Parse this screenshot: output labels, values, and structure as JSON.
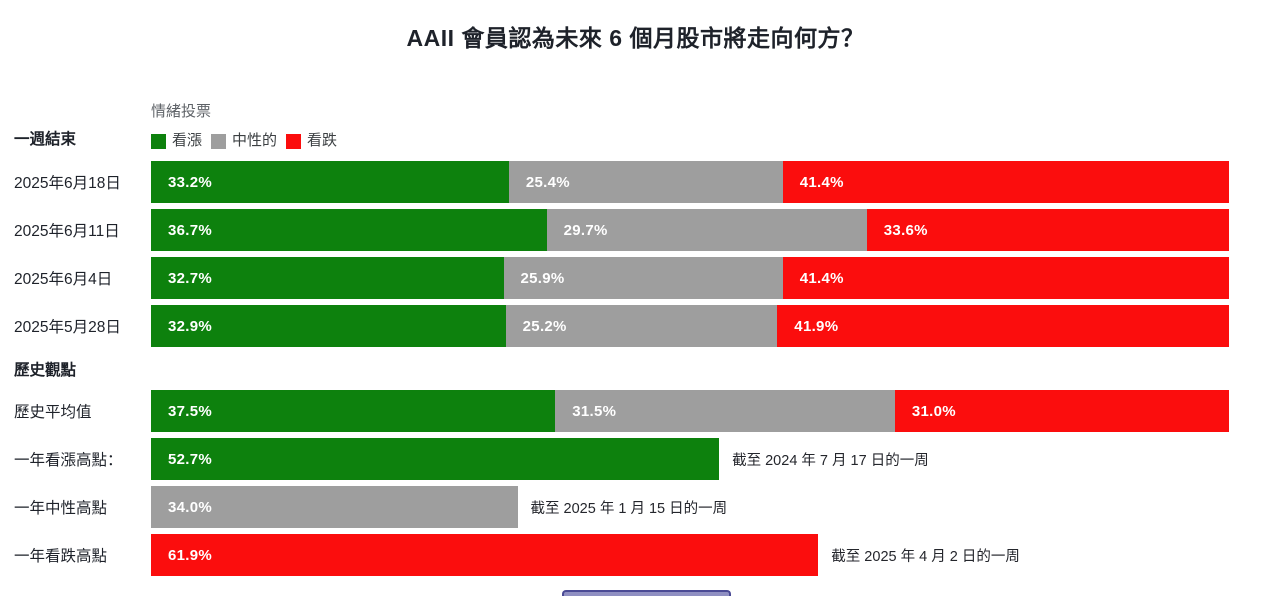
{
  "page": {
    "title": "AAII 會員認為未來 6 個月股市將走向何方？"
  },
  "colors": {
    "bullish": "#0d810d",
    "neutral": "#9e9e9e",
    "bearish": "#fb0d0d"
  },
  "legend": {
    "title": "情緒投票",
    "items": [
      {
        "label": "看漲",
        "color": "#0d810d",
        "kind": "bullish"
      },
      {
        "label": "中性的",
        "color": "#9e9e9e",
        "kind": "neutral"
      },
      {
        "label": "看跌",
        "color": "#fb0d0d",
        "kind": "bearish"
      }
    ]
  },
  "sections": [
    {
      "header": "一週結束",
      "rows": [
        {
          "label": "2025年6月18日",
          "segments": [
            {
              "kind": "bullish",
              "value": 33.2,
              "text": "33.2%"
            },
            {
              "kind": "neutral",
              "value": 25.4,
              "text": "25.4%"
            },
            {
              "kind": "bearish",
              "value": 41.4,
              "text": "41.4%"
            }
          ]
        },
        {
          "label": "2025年6月11日",
          "segments": [
            {
              "kind": "bullish",
              "value": 36.7,
              "text": "36.7%"
            },
            {
              "kind": "neutral",
              "value": 29.7,
              "text": "29.7%"
            },
            {
              "kind": "bearish",
              "value": 33.6,
              "text": "33.6%"
            }
          ]
        },
        {
          "label": "2025年6月4日",
          "segments": [
            {
              "kind": "bullish",
              "value": 32.7,
              "text": "32.7%"
            },
            {
              "kind": "neutral",
              "value": 25.9,
              "text": "25.9%"
            },
            {
              "kind": "bearish",
              "value": 41.4,
              "text": "41.4%"
            }
          ]
        },
        {
          "label": "2025年5月28日",
          "segments": [
            {
              "kind": "bullish",
              "value": 32.9,
              "text": "32.9%"
            },
            {
              "kind": "neutral",
              "value": 25.2,
              "text": "25.2%"
            },
            {
              "kind": "bearish",
              "value": 41.9,
              "text": "41.9%"
            }
          ]
        }
      ]
    },
    {
      "header": "歷史觀點",
      "rows": [
        {
          "label": "歷史平均值",
          "segments": [
            {
              "kind": "bullish",
              "value": 37.5,
              "text": "37.5%"
            },
            {
              "kind": "neutral",
              "value": 31.5,
              "text": "31.5%"
            },
            {
              "kind": "bearish",
              "value": 31.0,
              "text": "31.0%"
            }
          ]
        },
        {
          "label": "一年看漲高點：",
          "segments": [
            {
              "kind": "bullish",
              "value": 52.7,
              "text": "52.7%"
            }
          ],
          "note": "截至 2024 年 7 月 17 日的一周"
        },
        {
          "label": "一年中性高點",
          "segments": [
            {
              "kind": "neutral",
              "value": 34.0,
              "text": "34.0%"
            }
          ],
          "note": "截至 2025 年 1 月 15 日的一周"
        },
        {
          "label": "一年看跌高點",
          "segments": [
            {
              "kind": "bearish",
              "value": 61.9,
              "text": "61.9%"
            }
          ],
          "note": "截至 2025 年 4 月 2 日的一周"
        }
      ]
    }
  ],
  "chart_data": {
    "type": "bar",
    "orientation": "horizontal-stacked",
    "title": "AAII 會員認為未來 6 個月股市將走向何方？",
    "legend_title": "情緒投票",
    "legend_position": "top",
    "xlim": [
      0,
      100
    ],
    "grid": false,
    "weekly": {
      "section_label": "一週結束",
      "categories": [
        "2025年6月18日",
        "2025年6月11日",
        "2025年6月4日",
        "2025年5月28日"
      ],
      "series": [
        {
          "name": "看漲",
          "color": "#0d810d",
          "values": [
            33.2,
            36.7,
            32.7,
            32.9
          ]
        },
        {
          "name": "中性的",
          "color": "#9e9e9e",
          "values": [
            25.4,
            29.7,
            25.9,
            25.2
          ]
        },
        {
          "name": "看跌",
          "color": "#fb0d0d",
          "values": [
            41.4,
            33.6,
            41.4,
            41.9
          ]
        }
      ]
    },
    "historical": {
      "section_label": "歷史觀點",
      "rows": [
        {
          "label": "歷史平均值",
          "看漲": 37.5,
          "中性的": 31.5,
          "看跌": 31.0
        },
        {
          "label": "一年看漲高點",
          "series": "看漲",
          "value": 52.7,
          "note": "截至 2024 年 7 月 17 日的一周"
        },
        {
          "label": "一年中性高點",
          "series": "中性的",
          "value": 34.0,
          "note": "截至 2025 年 1 月 15 日的一周"
        },
        {
          "label": "一年看跌高點",
          "series": "看跌",
          "value": 61.9,
          "note": "截至 2025 年 4 月 2 日的一周"
        }
      ]
    }
  }
}
